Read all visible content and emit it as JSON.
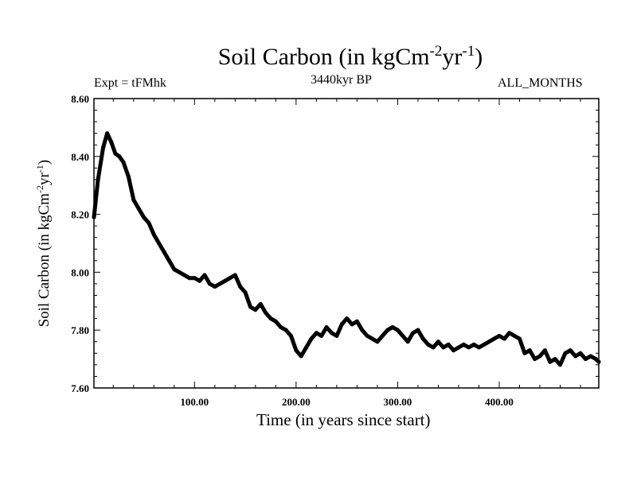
{
  "header": {
    "title_main": "Soil Carbon (in kgCm",
    "title_sup1": "-2",
    "title_mid": "yr",
    "title_sup2": "-1",
    "title_end": ")",
    "expt_label": "Expt = tFMhk",
    "subtitle": "3440kyr BP",
    "months_label": "ALL_MONTHS"
  },
  "axes": {
    "xlabel": "Time (in years since start)",
    "ylabel_main": "Soil Carbon (in kgCm",
    "ylabel_sup1": "-2",
    "ylabel_mid": "yr",
    "ylabel_sup2": "-1",
    "ylabel_end": ")"
  },
  "chart_data": {
    "type": "line",
    "title": "Soil Carbon (in kgCm-2yr-1)",
    "xlabel": "Time (in years since start)",
    "ylabel": "Soil Carbon (in kgCm-2yr-1)",
    "xlim": [
      1,
      498
    ],
    "ylim": [
      7.6,
      8.6
    ],
    "x_ticks": [
      100,
      200,
      300,
      400
    ],
    "x_tick_labels": [
      "100.00",
      "200.00",
      "300.00",
      "400.00"
    ],
    "y_ticks": [
      7.6,
      7.8,
      8.0,
      8.2,
      8.4,
      8.6
    ],
    "y_tick_labels": [
      "7.60",
      "7.80",
      "8.00",
      "8.20",
      "8.40",
      "8.60"
    ],
    "line_color": "#000000",
    "series": [
      {
        "name": "Soil Carbon",
        "x": [
          1,
          5,
          10,
          14,
          18,
          22,
          26,
          30,
          35,
          40,
          45,
          50,
          55,
          60,
          65,
          70,
          75,
          80,
          85,
          90,
          95,
          100,
          105,
          110,
          115,
          120,
          125,
          130,
          135,
          140,
          145,
          150,
          155,
          160,
          165,
          170,
          175,
          180,
          185,
          190,
          195,
          200,
          205,
          210,
          215,
          220,
          225,
          230,
          235,
          240,
          245,
          250,
          255,
          260,
          265,
          270,
          275,
          280,
          285,
          290,
          295,
          300,
          305,
          310,
          315,
          320,
          325,
          330,
          335,
          340,
          345,
          350,
          355,
          360,
          365,
          370,
          375,
          380,
          385,
          390,
          395,
          400,
          405,
          410,
          415,
          420,
          425,
          430,
          435,
          440,
          445,
          450,
          455,
          460,
          465,
          470,
          475,
          480,
          485,
          490,
          495,
          498
        ],
        "values": [
          8.19,
          8.32,
          8.43,
          8.48,
          8.45,
          8.41,
          8.4,
          8.38,
          8.33,
          8.25,
          8.22,
          8.19,
          8.17,
          8.13,
          8.1,
          8.07,
          8.04,
          8.01,
          8.0,
          7.99,
          7.98,
          7.98,
          7.97,
          7.99,
          7.96,
          7.95,
          7.96,
          7.97,
          7.98,
          7.99,
          7.95,
          7.93,
          7.88,
          7.87,
          7.89,
          7.86,
          7.84,
          7.83,
          7.81,
          7.8,
          7.78,
          7.73,
          7.71,
          7.74,
          7.77,
          7.79,
          7.78,
          7.81,
          7.79,
          7.78,
          7.82,
          7.84,
          7.82,
          7.83,
          7.8,
          7.78,
          7.77,
          7.76,
          7.78,
          7.8,
          7.81,
          7.8,
          7.78,
          7.76,
          7.79,
          7.8,
          7.77,
          7.75,
          7.74,
          7.76,
          7.74,
          7.75,
          7.73,
          7.74,
          7.75,
          7.74,
          7.75,
          7.74,
          7.75,
          7.76,
          7.77,
          7.78,
          7.77,
          7.79,
          7.78,
          7.77,
          7.72,
          7.73,
          7.7,
          7.71,
          7.73,
          7.69,
          7.7,
          7.68,
          7.72,
          7.73,
          7.71,
          7.72,
          7.7,
          7.71,
          7.7,
          7.69
        ]
      }
    ]
  }
}
